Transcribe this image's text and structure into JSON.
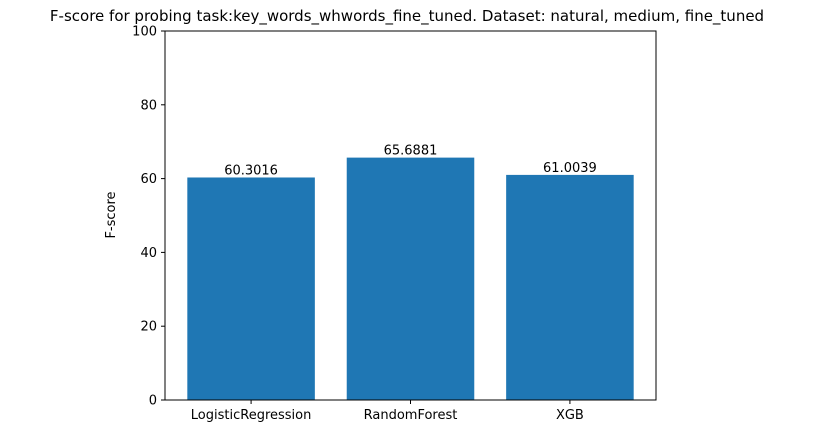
{
  "chart_data": {
    "type": "bar",
    "title": "F-score for probing task:key_words_whwords_fine_tuned. Dataset: natural, medium, fine_tuned",
    "xlabel": "",
    "ylabel": "F-score",
    "categories": [
      "LogisticRegression",
      "RandomForest",
      "XGB"
    ],
    "values": [
      60.3016,
      65.6881,
      61.0039
    ],
    "data_labels": [
      "60.3016",
      "65.6881",
      "61.0039"
    ],
    "ylim": [
      0,
      100
    ],
    "yticks": [
      0,
      20,
      40,
      60,
      80,
      100
    ],
    "bar_color": "#1f77b4",
    "grid": false,
    "legend": "none"
  }
}
